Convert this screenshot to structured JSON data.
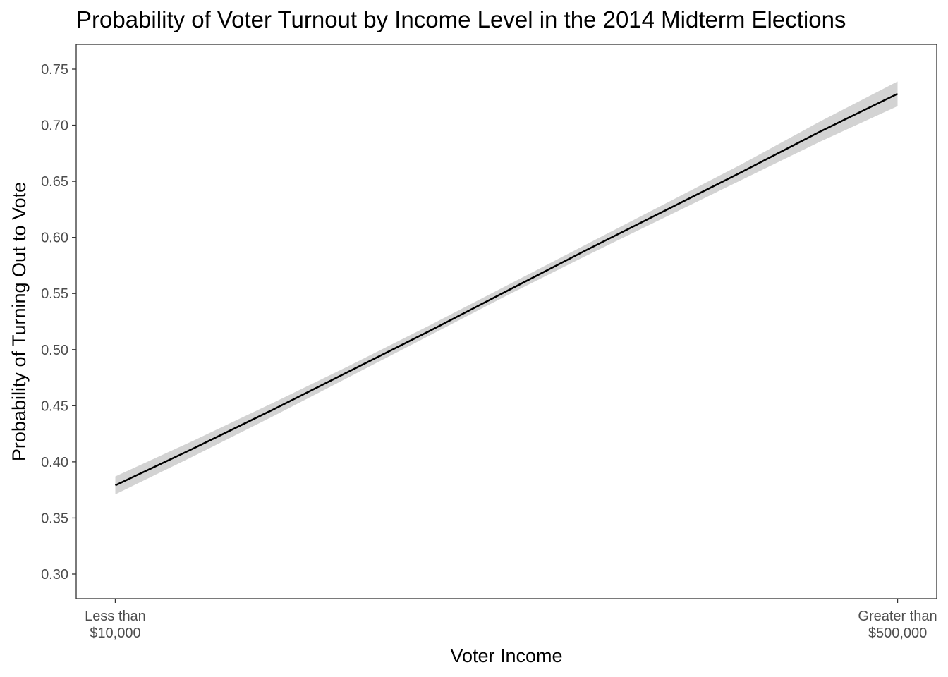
{
  "chart_data": {
    "type": "line",
    "title": "Probability of Voter Turnout by Income Level in the 2014 Midterm Elections",
    "xlabel": "Voter Income",
    "ylabel": "Probability of Turning Out to Vote",
    "x_ticks": [
      {
        "position": 0,
        "lines": [
          "Less than",
          "$10,000"
        ]
      },
      {
        "position": 1,
        "lines": [
          "Greater than",
          "$500,000"
        ]
      }
    ],
    "xlim": [
      -0.05,
      1.05
    ],
    "ylim": [
      0.278,
      0.772
    ],
    "y_ticks": [
      "0.30",
      "0.35",
      "0.40",
      "0.45",
      "0.50",
      "0.55",
      "0.60",
      "0.65",
      "0.70",
      "0.75"
    ],
    "grid": false,
    "series": [
      {
        "x": [
          0,
          0.1,
          0.2,
          0.3,
          0.4,
          0.5,
          0.6,
          0.7,
          0.8,
          0.9,
          1.0
        ],
        "y": [
          0.379,
          0.412,
          0.446,
          0.481,
          0.516,
          0.552,
          0.588,
          0.623,
          0.658,
          0.694,
          0.728
        ],
        "lower": [
          0.371,
          0.405,
          0.44,
          0.476,
          0.512,
          0.548,
          0.583,
          0.617,
          0.651,
          0.685,
          0.717
        ],
        "upper": [
          0.387,
          0.419,
          0.452,
          0.486,
          0.521,
          0.557,
          0.593,
          0.629,
          0.665,
          0.703,
          0.739
        ]
      }
    ],
    "colors": {
      "line": "#000000",
      "ribbon": "#d3d3d3",
      "panel_border": "#333333",
      "tick_text": "#4d4d4d"
    }
  }
}
